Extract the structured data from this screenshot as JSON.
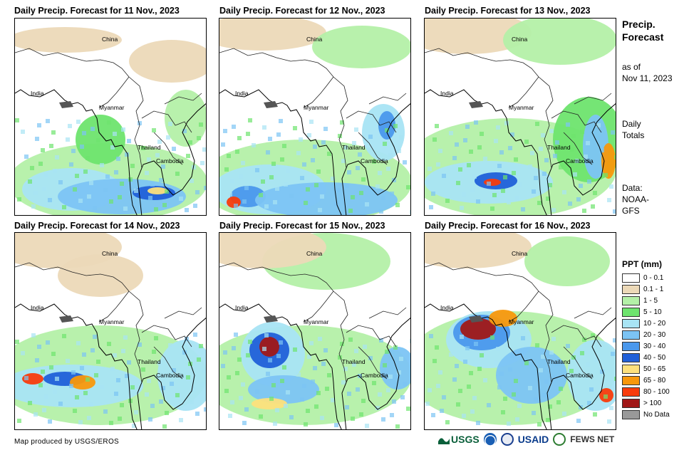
{
  "panels": [
    {
      "title": "Daily Precip. Forecast for 11 Nov., 2023",
      "labels": {
        "china": "China",
        "india": "India",
        "myanmar": "Myanmar",
        "thailand": "Thailand",
        "cambodia": "Cambodia"
      }
    },
    {
      "title": "Daily Precip. Forecast for 12 Nov., 2023",
      "labels": {
        "china": "China",
        "india": "India",
        "myanmar": "Myanmar",
        "thailand": "Thailand",
        "cambodia": "Cambodia"
      }
    },
    {
      "title": "Daily Precip. Forecast for 13 Nov., 2023",
      "labels": {
        "china": "China",
        "india": "India",
        "myanmar": "Myanmar",
        "thailand": "Thailand",
        "cambodia": "Cambodia"
      }
    },
    {
      "title": "Daily Precip. Forecast for 14 Nov., 2023",
      "labels": {
        "china": "China",
        "india": "India",
        "myanmar": "Myanmar",
        "thailand": "Thailand",
        "cambodia": "Cambodia"
      }
    },
    {
      "title": "Daily Precip. Forecast for 15 Nov., 2023",
      "labels": {
        "china": "China",
        "india": "India",
        "myanmar": "Myanmar",
        "thailand": "Thailand",
        "cambodia": "Cambodia"
      }
    },
    {
      "title": "Daily Precip. Forecast for 16 Nov., 2023",
      "labels": {
        "china": "China",
        "india": "India",
        "myanmar": "Myanmar",
        "thailand": "Thailand",
        "cambodia": "Cambodia"
      }
    }
  ],
  "side": {
    "title_line1": "Precip.",
    "title_line2": "Forecast",
    "asof_line1": "as of",
    "asof_line2": "Nov 11, 2023",
    "daily_line1": "Daily",
    "daily_line2": "Totals",
    "data_line1": "Data:",
    "data_line2": "NOAA-",
    "data_line3": "GFS"
  },
  "legend": {
    "title": "PPT (mm)",
    "items": [
      {
        "label": "0 - 0.1",
        "color": "#ffffff"
      },
      {
        "label": "0.1 - 1",
        "color": "#ecd9b8"
      },
      {
        "label": "1 - 5",
        "color": "#b4f0a8"
      },
      {
        "label": "5 - 10",
        "color": "#6ee46e"
      },
      {
        "label": "10 - 20",
        "color": "#a8e4f4"
      },
      {
        "label": "20 - 30",
        "color": "#7cc4f4"
      },
      {
        "label": "30 - 40",
        "color": "#4a98ec"
      },
      {
        "label": "40 - 50",
        "color": "#2060d8"
      },
      {
        "label": "50 - 65",
        "color": "#fce07c"
      },
      {
        "label": "65 - 80",
        "color": "#f8980c"
      },
      {
        "label": "80 - 100",
        "color": "#f83c0c"
      },
      {
        "label": "> 100",
        "color": "#a01818"
      },
      {
        "label": "No Data",
        "color": "#999999"
      }
    ]
  },
  "footer": "Map produced by USGS/EROS",
  "logos": {
    "usgs": "USGS",
    "usaid": "USAID",
    "fewsnet": "FEWS NET"
  }
}
